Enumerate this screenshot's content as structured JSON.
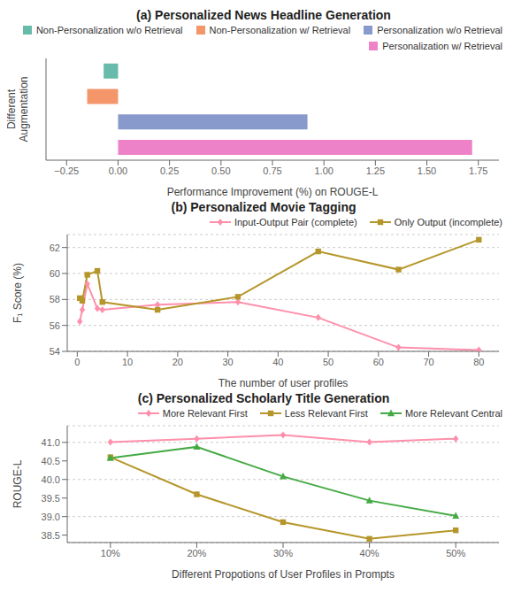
{
  "chart_data": [
    {
      "type": "bar",
      "orientation": "horizontal",
      "title": "(a) Personalized News Headline Generation",
      "xlabel": "Performance Improvement (%) on ROUGE-L",
      "ylabel": "Different\nAugmentation",
      "categories": [
        "Personalization w/ Retrieval",
        "Personalization w/o Retrieval",
        "Non-Personalization w/ Retrieval",
        "Non-Personalization w/o Retrieval"
      ],
      "values": [
        1.72,
        0.92,
        -0.15,
        -0.07
      ],
      "colors": [
        "#ee82c8",
        "#8899cc",
        "#f4956a",
        "#66bbaa"
      ],
      "xlim": [
        -0.35,
        1.85
      ],
      "xticks": [
        {
          "value": -0.25,
          "label": "−0.25"
        },
        {
          "value": 0,
          "label": "0.00"
        },
        {
          "value": 0.25,
          "label": "0.25"
        },
        {
          "value": 0.5,
          "label": "0.50"
        },
        {
          "value": 0.75,
          "label": "0.75"
        },
        {
          "value": 1,
          "label": "1.00"
        },
        {
          "value": 1.25,
          "label": "1.25"
        },
        {
          "value": 1.5,
          "label": "1.50"
        },
        {
          "value": 1.75,
          "label": "1.75"
        }
      ],
      "tick_labels": "x",
      "legend": "right",
      "grid": false
    },
    {
      "type": "line",
      "title": "(b) Personalized Movie Tagging",
      "xlabel": "The number of user profiles",
      "ylabel": "F₁ Score (%)",
      "x": [
        0.5,
        1,
        2,
        4,
        5,
        16,
        32,
        48,
        64,
        80
      ],
      "series": [
        {
          "name": "Input-Output Pair (complete)",
          "color": "#ff8fab",
          "marker": "diamond",
          "values": [
            56.3,
            57.2,
            59.2,
            57.3,
            57.2,
            57.6,
            57.8,
            56.6,
            54.3,
            54.1
          ]
        },
        {
          "name": "Only Output (incomplete)",
          "color": "#b5962a",
          "marker": "square",
          "values": [
            58.1,
            57.9,
            59.9,
            60.2,
            57.8,
            57.2,
            58.2,
            61.7,
            60.3,
            62.6
          ]
        }
      ],
      "xlim": [
        -2,
        84
      ],
      "ylim": [
        54,
        63
      ],
      "xticks": [
        0,
        10,
        20,
        30,
        40,
        50,
        60,
        70,
        80
      ],
      "yticks": [
        54,
        56,
        58,
        60,
        62
      ],
      "grid": "y",
      "legend": "right"
    },
    {
      "type": "line",
      "title": "(c) Personalized Scholarly Title Generation",
      "xlabel": "Different Propotions of User Profiles in Prompts",
      "ylabel": "ROUGE-L",
      "x": [
        10,
        20,
        30,
        40,
        50
      ],
      "series": [
        {
          "name": "More Relevant First",
          "color": "#ff8fab",
          "marker": "diamond",
          "values": [
            41.01,
            41.1,
            41.2,
            41.01,
            41.1
          ]
        },
        {
          "name": "Less Relevant First",
          "color": "#b5962a",
          "marker": "square",
          "values": [
            40.6,
            39.6,
            38.85,
            38.4,
            38.63
          ]
        },
        {
          "name": "More Relevant Central",
          "color": "#44aa44",
          "marker": "triangle",
          "values": [
            40.58,
            40.88,
            40.08,
            39.43,
            39.02
          ]
        }
      ],
      "xlim": [
        5,
        55
      ],
      "ylim": [
        38.3,
        41.45
      ],
      "xticks": [
        {
          "value": 10,
          "label": "10%"
        },
        {
          "value": 20,
          "label": "20%"
        },
        {
          "value": 30,
          "label": "30%"
        },
        {
          "value": 40,
          "label": "40%"
        },
        {
          "value": 50,
          "label": "50%"
        }
      ],
      "yticks": [
        38.5,
        {
          "value": 39,
          "label": "39.0"
        },
        39.5,
        {
          "value": 40,
          "label": "40.0"
        },
        40.5,
        {
          "value": 41,
          "label": "41.0"
        }
      ],
      "grid": "y",
      "legend": "right"
    }
  ]
}
